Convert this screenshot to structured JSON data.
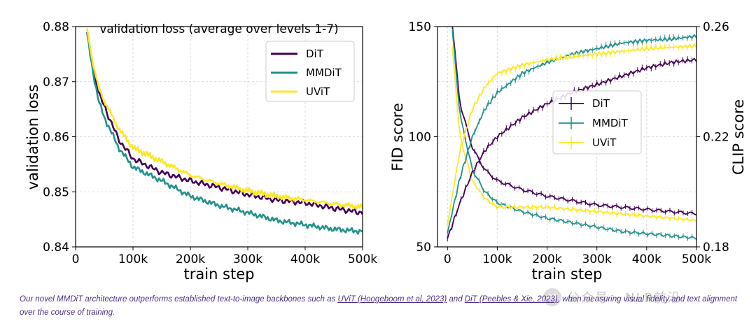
{
  "chart_data": [
    {
      "type": "line",
      "title": "validation loss (average over levels 1-7)",
      "xlabel": "train step",
      "ylabel": "validation loss",
      "xlim": [
        0,
        500000
      ],
      "ylim": [
        0.84,
        0.88
      ],
      "x_ticks": [
        0,
        100000,
        200000,
        300000,
        400000,
        500000
      ],
      "x_tick_labels": [
        "0",
        "100k",
        "200k",
        "300k",
        "400k",
        "500k"
      ],
      "y_ticks": [
        0.84,
        0.85,
        0.86,
        0.87,
        0.88
      ],
      "y_tick_labels": [
        "0.84",
        "0.85",
        "0.86",
        "0.87",
        "0.88"
      ],
      "grid": true,
      "legend": "top-right",
      "series": [
        {
          "name": "DiT",
          "color": "#440154",
          "x": [
            20000,
            30000,
            40000,
            50000,
            75000,
            100000,
            150000,
            200000,
            250000,
            300000,
            350000,
            400000,
            450000,
            500000
          ],
          "y": [
            0.879,
            0.873,
            0.868,
            0.8655,
            0.8595,
            0.856,
            0.8535,
            0.852,
            0.8508,
            0.8495,
            0.8485,
            0.848,
            0.847,
            0.8462
          ]
        },
        {
          "name": "MMDiT",
          "color": "#21918c",
          "x": [
            20000,
            30000,
            40000,
            50000,
            75000,
            100000,
            150000,
            200000,
            250000,
            300000,
            350000,
            400000,
            450000,
            500000
          ],
          "y": [
            0.8785,
            0.872,
            0.8665,
            0.8635,
            0.858,
            0.8545,
            0.852,
            0.8492,
            0.8475,
            0.8462,
            0.8448,
            0.844,
            0.8432,
            0.8428
          ]
        },
        {
          "name": "UViT",
          "color": "#fde725",
          "x": [
            20000,
            30000,
            40000,
            50000,
            75000,
            100000,
            150000,
            200000,
            250000,
            300000,
            350000,
            400000,
            450000,
            500000
          ],
          "y": [
            0.8795,
            0.8735,
            0.869,
            0.8665,
            0.8615,
            0.858,
            0.8555,
            0.853,
            0.8515,
            0.8502,
            0.8492,
            0.8485,
            0.8478,
            0.8472
          ]
        }
      ]
    },
    {
      "type": "line",
      "xlabel": "train step",
      "ylabel": "FID score",
      "y2label": "CLIP score",
      "xlim": [
        -20000,
        500000
      ],
      "ylim": [
        50,
        150
      ],
      "y2lim": [
        0.18,
        0.26
      ],
      "x_ticks": [
        0,
        100000,
        200000,
        300000,
        400000,
        500000
      ],
      "x_tick_labels": [
        "0",
        "100k",
        "200k",
        "300k",
        "400k",
        "500k"
      ],
      "y_ticks": [
        50,
        100,
        150
      ],
      "y_tick_labels": [
        "50",
        "100",
        "150"
      ],
      "y2_ticks": [
        0.18,
        0.22,
        0.26
      ],
      "y2_tick_labels": [
        "0.18",
        "0.22",
        "0.26"
      ],
      "grid": true,
      "legend": "center",
      "error_bars": true,
      "series": [
        {
          "name": "DiT",
          "color": "#440154",
          "metric": "FID",
          "x": [
            10000,
            25000,
            50000,
            75000,
            100000,
            150000,
            200000,
            250000,
            300000,
            350000,
            400000,
            450000,
            500000
          ],
          "y": [
            150,
            115,
            95,
            85,
            80,
            76,
            73,
            71,
            69,
            68,
            67,
            66,
            65
          ]
        },
        {
          "name": "MMDiT",
          "color": "#21918c",
          "metric": "FID",
          "x": [
            10000,
            25000,
            50000,
            75000,
            100000,
            150000,
            200000,
            250000,
            300000,
            350000,
            400000,
            450000,
            500000
          ],
          "y": [
            148,
            110,
            85,
            75,
            70,
            66,
            63,
            61,
            59,
            57,
            56,
            55,
            54
          ]
        },
        {
          "name": "UViT",
          "color": "#fde725",
          "metric": "FID",
          "x": [
            10000,
            25000,
            50000,
            75000,
            100000,
            150000,
            200000,
            250000,
            300000,
            350000,
            400000,
            450000,
            500000
          ],
          "y": [
            140,
            100,
            80,
            72,
            68,
            68,
            68,
            67,
            66,
            65,
            64,
            63,
            62
          ]
        },
        {
          "name": "DiT",
          "color": "#440154",
          "metric": "CLIP",
          "x": [
            0,
            25000,
            50000,
            75000,
            100000,
            150000,
            200000,
            250000,
            300000,
            350000,
            400000,
            450000,
            500000
          ],
          "y": [
            0.183,
            0.196,
            0.207,
            0.215,
            0.22,
            0.227,
            0.232,
            0.236,
            0.239,
            0.242,
            0.245,
            0.247,
            0.248
          ]
        },
        {
          "name": "MMDiT",
          "color": "#21918c",
          "metric": "CLIP",
          "x": [
            0,
            25000,
            50000,
            75000,
            100000,
            150000,
            200000,
            250000,
            300000,
            350000,
            400000,
            450000,
            500000
          ],
          "y": [
            0.185,
            0.205,
            0.22,
            0.23,
            0.236,
            0.243,
            0.247,
            0.25,
            0.252,
            0.254,
            0.255,
            0.2555,
            0.2565
          ]
        },
        {
          "name": "UViT",
          "color": "#fde725",
          "metric": "CLIP",
          "x": [
            0,
            25000,
            50000,
            75000,
            100000,
            150000,
            200000,
            250000,
            300000,
            350000,
            400000,
            450000,
            500000
          ],
          "y": [
            0.188,
            0.215,
            0.23,
            0.238,
            0.243,
            0.246,
            0.248,
            0.249,
            0.25,
            0.251,
            0.252,
            0.2525,
            0.253
          ]
        }
      ]
    }
  ],
  "caption": {
    "part1": "Our novel MMDiT architecture outperforms established text-to-image backbones such as ",
    "link1": "UViT (Hoogeboom et al, 2023)",
    "part2": " and ",
    "link2": "DiT (Peebles & Xie, 2023)",
    "part3": ", when measuring visual fidelity and text alignment over the course of training."
  },
  "watermark": "公众号 · NLP前沿"
}
